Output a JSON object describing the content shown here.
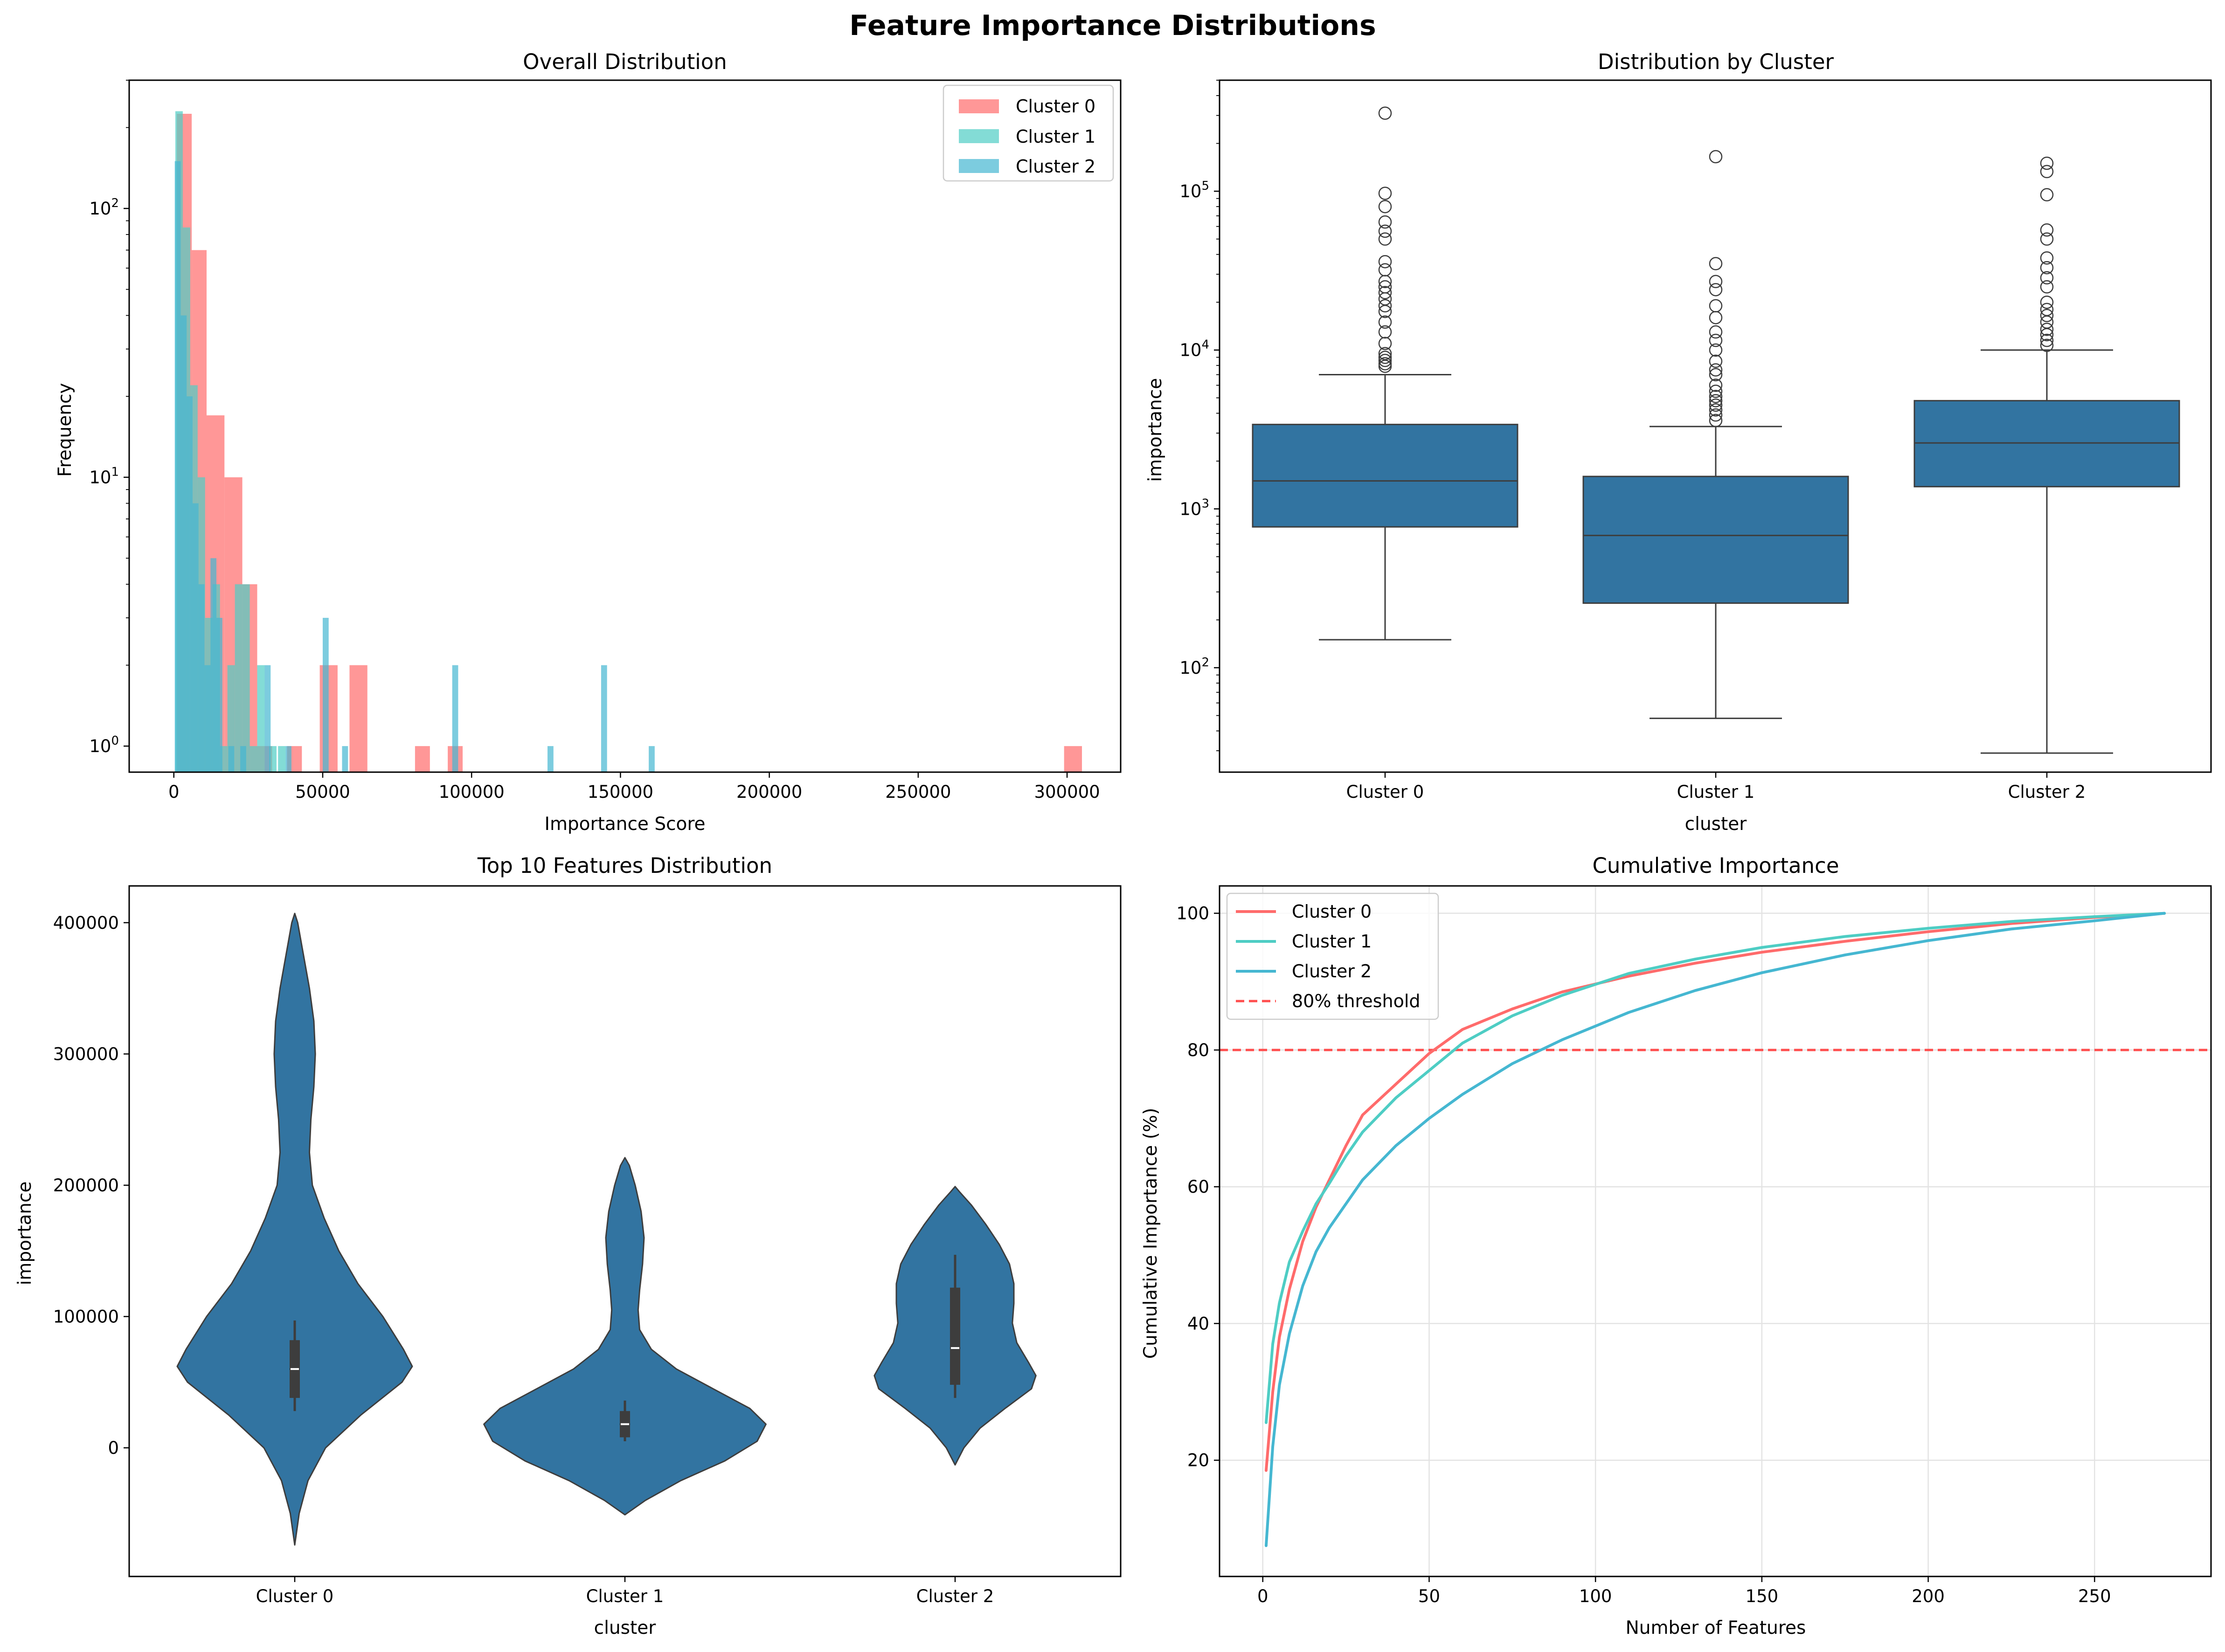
{
  "figure": {
    "title": "Feature Importance Distributions"
  },
  "chart_data": [
    {
      "type": "histogram",
      "title": "Overall Distribution",
      "xlabel": "Importance Score",
      "ylabel": "Frequency",
      "yscale": "log",
      "xlim": [
        -15000,
        318000
      ],
      "ylim": [
        0.8,
        300
      ],
      "xticks": [
        "0",
        "50000",
        "100000",
        "150000",
        "200000",
        "250000",
        "300000"
      ],
      "yticks": [
        "10",
        "10",
        "10"
      ],
      "yticks_exp": [
        "0",
        "1",
        "2"
      ],
      "legend": {
        "position": "upper right",
        "entries": [
          "Cluster 0",
          "Cluster 1",
          "Cluster 2"
        ]
      },
      "series": [
        {
          "name": "Cluster 0",
          "color": "#ff6b6b",
          "bins": [
            [
              1000,
              6000,
              225
            ],
            [
              6000,
              11000,
              70
            ],
            [
              11000,
              17000,
              17
            ],
            [
              17000,
              23000,
              10
            ],
            [
              23000,
              28000,
              4
            ],
            [
              28000,
              33000,
              1
            ],
            [
              38000,
              43000,
              1
            ],
            [
              49000,
              55000,
              2
            ],
            [
              59000,
              65000,
              2
            ],
            [
              81000,
              86000,
              1
            ],
            [
              92000,
              97000,
              1
            ],
            [
              299000,
              305000,
              1
            ]
          ]
        },
        {
          "name": "Cluster 1",
          "color": "#4ecdc4",
          "bins": [
            [
              500,
              3000,
              230
            ],
            [
              3000,
              5500,
              85
            ],
            [
              5500,
              8000,
              22
            ],
            [
              8000,
              10500,
              10
            ],
            [
              10500,
              13000,
              3
            ],
            [
              13000,
              15500,
              4
            ],
            [
              15500,
              18000,
              1
            ],
            [
              18000,
              20500,
              2
            ],
            [
              20500,
              23000,
              4
            ],
            [
              23000,
              25500,
              4
            ],
            [
              25500,
              28000,
              1
            ],
            [
              28000,
              30500,
              2
            ],
            [
              32000,
              34500,
              1
            ],
            [
              35000,
              37500,
              1
            ]
          ]
        },
        {
          "name": "Cluster 2",
          "color": "#45b7d1",
          "bins": [
            [
              300,
              2300,
              150
            ],
            [
              2300,
              4300,
              40
            ],
            [
              4300,
              6300,
              20
            ],
            [
              6300,
              8300,
              8
            ],
            [
              8300,
              10300,
              4
            ],
            [
              10300,
              12300,
              2
            ],
            [
              12300,
              14300,
              5
            ],
            [
              14300,
              16300,
              3
            ],
            [
              18300,
              20300,
              1
            ],
            [
              22300,
              24300,
              1
            ],
            [
              30500,
              32500,
              2
            ],
            [
              37500,
              39500,
              1
            ],
            [
              50000,
              52000,
              3
            ],
            [
              56500,
              58500,
              1
            ],
            [
              93500,
              95500,
              2
            ],
            [
              125500,
              127500,
              1
            ],
            [
              143500,
              145500,
              2
            ],
            [
              159500,
              161500,
              1
            ]
          ]
        }
      ]
    },
    {
      "type": "box",
      "title": "Distribution by Cluster",
      "xlabel": "cluster",
      "ylabel": "importance",
      "yscale": "log",
      "ylim": [
        22,
        500000
      ],
      "categories": [
        "Cluster 0",
        "Cluster 1",
        "Cluster 2"
      ],
      "yticks": [
        "10",
        "10",
        "10",
        "10"
      ],
      "yticks_exp": [
        "2",
        "3",
        "4",
        "5"
      ],
      "color": "#3274a1",
      "boxes": [
        {
          "category": "Cluster 0",
          "whisker_low": 150,
          "q1": 770,
          "median": 1500,
          "q3": 3400,
          "whisker_high": 7000,
          "outliers": [
            7900,
            8200,
            8600,
            9000,
            9500,
            11000,
            13000,
            15000,
            17500,
            19000,
            21000,
            23000,
            25000,
            27000,
            32000,
            36000,
            50000,
            56000,
            64000,
            80000,
            97000,
            310000
          ]
        },
        {
          "category": "Cluster 1",
          "whisker_low": 48,
          "q1": 255,
          "median": 680,
          "q3": 1600,
          "whisker_high": 3300,
          "outliers": [
            3600,
            3900,
            4200,
            4500,
            4800,
            5100,
            5500,
            6000,
            7000,
            7500,
            8500,
            10000,
            11500,
            13000,
            16000,
            19000,
            24000,
            27000,
            35000,
            165000
          ]
        },
        {
          "category": "Cluster 2",
          "whisker_low": 29,
          "q1": 1380,
          "median": 2600,
          "q3": 4800,
          "whisker_high": 10000,
          "outliers": [
            10700,
            11500,
            12500,
            13500,
            15000,
            16500,
            18000,
            20000,
            25000,
            28500,
            33000,
            38000,
            50000,
            57000,
            95000,
            133000,
            150000
          ]
        }
      ]
    },
    {
      "type": "violin",
      "title": "Top 10 Features Distribution",
      "xlabel": "cluster",
      "ylabel": "importance",
      "ylim": [
        -98000,
        428000
      ],
      "categories": [
        "Cluster 0",
        "Cluster 1",
        "Cluster 2"
      ],
      "yticks": [
        0,
        100000,
        200000,
        300000,
        400000
      ],
      "color": "#3274a1",
      "violins": [
        {
          "category": "Cluster 0",
          "median": 60000,
          "q1": 38000,
          "q3": 82000,
          "whisker_low": 28000,
          "whisker_high": 97000,
          "profile": [
            [
              -74000,
              0.0
            ],
            [
              -50000,
              0.03
            ],
            [
              -25000,
              0.09
            ],
            [
              0,
              0.21
            ],
            [
              25000,
              0.45
            ],
            [
              50000,
              0.73
            ],
            [
              62000,
              0.8
            ],
            [
              75000,
              0.74
            ],
            [
              100000,
              0.6
            ],
            [
              125000,
              0.43
            ],
            [
              150000,
              0.3
            ],
            [
              175000,
              0.2
            ],
            [
              200000,
              0.12
            ],
            [
              225000,
              0.1
            ],
            [
              250000,
              0.11
            ],
            [
              275000,
              0.13
            ],
            [
              300000,
              0.14
            ],
            [
              325000,
              0.13
            ],
            [
              350000,
              0.1
            ],
            [
              375000,
              0.06
            ],
            [
              400000,
              0.02
            ],
            [
              407000,
              0.0
            ]
          ]
        },
        {
          "category": "Cluster 1",
          "median": 18000,
          "q1": 8000,
          "q3": 28000,
          "whisker_low": 5000,
          "whisker_high": 36000,
          "profile": [
            [
              -51000,
              0.0
            ],
            [
              -40000,
              0.14
            ],
            [
              -25000,
              0.38
            ],
            [
              -10000,
              0.68
            ],
            [
              5000,
              0.9
            ],
            [
              18000,
              0.96
            ],
            [
              30000,
              0.85
            ],
            [
              45000,
              0.6
            ],
            [
              60000,
              0.35
            ],
            [
              75000,
              0.18
            ],
            [
              90000,
              0.1
            ],
            [
              105000,
              0.09
            ],
            [
              120000,
              0.1
            ],
            [
              140000,
              0.12
            ],
            [
              160000,
              0.13
            ],
            [
              180000,
              0.11
            ],
            [
              200000,
              0.07
            ],
            [
              215000,
              0.03
            ],
            [
              221000,
              0.0
            ]
          ]
        },
        {
          "category": "Cluster 2",
          "median": 76000,
          "q1": 48000,
          "q3": 122000,
          "whisker_low": 38000,
          "whisker_high": 147000,
          "profile": [
            [
              -13000,
              0.0
            ],
            [
              0,
              0.06
            ],
            [
              15000,
              0.17
            ],
            [
              30000,
              0.34
            ],
            [
              45000,
              0.52
            ],
            [
              55000,
              0.55
            ],
            [
              65000,
              0.5
            ],
            [
              80000,
              0.42
            ],
            [
              95000,
              0.39
            ],
            [
              110000,
              0.4
            ],
            [
              125000,
              0.4
            ],
            [
              140000,
              0.37
            ],
            [
              155000,
              0.3
            ],
            [
              170000,
              0.21
            ],
            [
              185000,
              0.11
            ],
            [
              195000,
              0.03
            ],
            [
              199000,
              0.0
            ]
          ]
        }
      ]
    },
    {
      "type": "line",
      "title": "Cumulative Importance",
      "xlabel": "Number of Features",
      "ylabel": "Cumulative Importance (%)",
      "xlim": [
        -13,
        285
      ],
      "ylim": [
        3,
        104
      ],
      "xticks": [
        0,
        50,
        100,
        150,
        200,
        250
      ],
      "yticks": [
        20,
        40,
        60,
        80,
        100
      ],
      "grid": true,
      "legend": {
        "position": "upper left"
      },
      "hline": {
        "y": 80,
        "label": "80% threshold",
        "color": "#ff4d4d"
      },
      "series": [
        {
          "name": "Cluster 0",
          "color": "#ff6b6b",
          "x": [
            1,
            3,
            5,
            8,
            12,
            16,
            20,
            25,
            30,
            40,
            50,
            60,
            75,
            90,
            110,
            130,
            150,
            175,
            200,
            225,
            250,
            271
          ],
          "y": [
            18.5,
            30,
            38,
            45,
            52,
            57,
            61,
            66,
            70.5,
            75,
            79.5,
            83,
            86,
            88.5,
            90.8,
            92.7,
            94.3,
            95.9,
            97.3,
            98.5,
            99.4,
            100
          ]
        },
        {
          "name": "Cluster 1",
          "color": "#4ecdc4",
          "x": [
            1,
            3,
            5,
            8,
            12,
            16,
            20,
            25,
            30,
            40,
            50,
            60,
            75,
            90,
            110,
            130,
            150,
            175,
            200,
            225,
            250,
            271
          ],
          "y": [
            25.5,
            37,
            43,
            49,
            53.5,
            57.5,
            60.5,
            64.5,
            68,
            73,
            77,
            81,
            85,
            88,
            91.2,
            93.3,
            95,
            96.6,
            97.8,
            98.8,
            99.5,
            100
          ]
        },
        {
          "name": "Cluster 2",
          "color": "#45b7d1",
          "x": [
            1,
            3,
            5,
            8,
            12,
            16,
            20,
            25,
            30,
            40,
            50,
            60,
            75,
            90,
            110,
            130,
            150,
            175,
            200,
            225,
            250,
            271
          ],
          "y": [
            7.5,
            22,
            31,
            38.5,
            45.5,
            50.5,
            54,
            57.5,
            61,
            66,
            70,
            73.5,
            78,
            81.5,
            85.5,
            88.7,
            91.3,
            93.9,
            96,
            97.7,
            98.9,
            100
          ]
        }
      ]
    }
  ]
}
